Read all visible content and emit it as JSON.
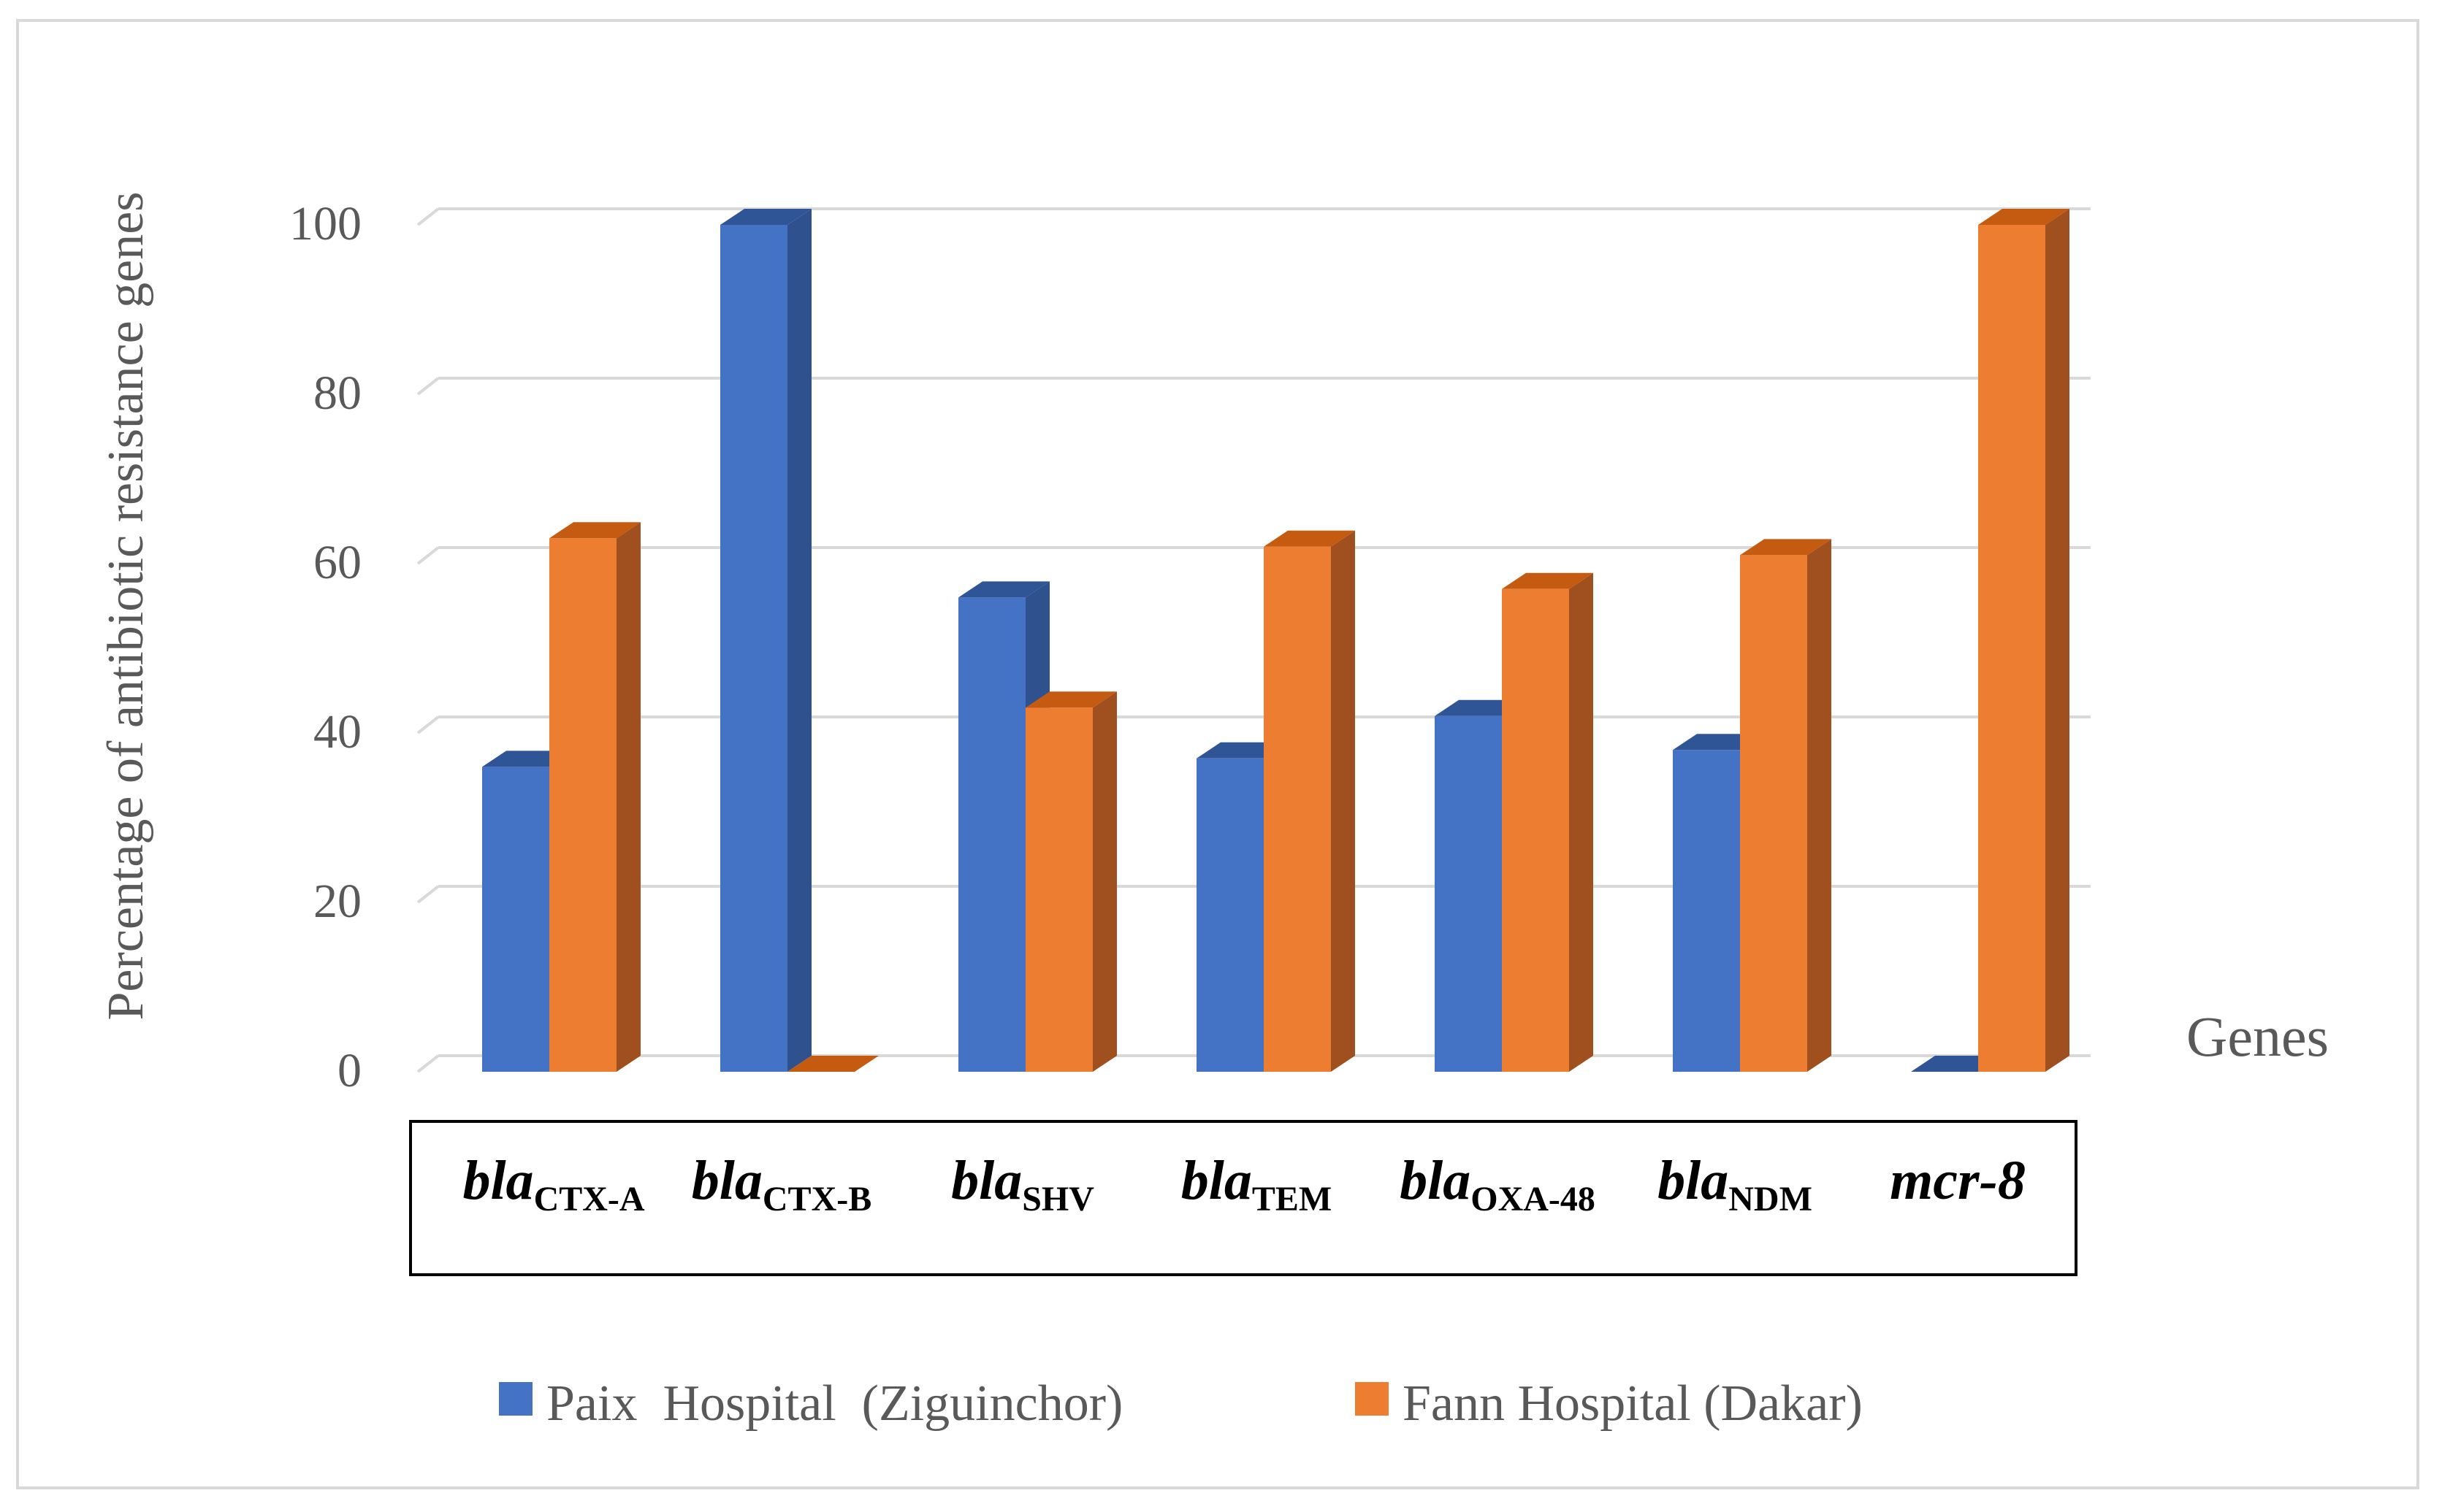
{
  "chart_data": {
    "type": "bar",
    "style": "3d-clustered",
    "ylabel": "Percentage of antibiotic resistance genes",
    "xlabel": "Genes",
    "ylim": [
      0,
      100
    ],
    "yticks": [
      "0",
      "20",
      "40",
      "60",
      "80",
      "100"
    ],
    "grid": true,
    "categories": [
      {
        "main": "bla",
        "sub": "CTX-A"
      },
      {
        "main": "bla",
        "sub": "CTX-B"
      },
      {
        "main": "bla",
        "sub": "SHV"
      },
      {
        "main": "bla",
        "sub": "TEM"
      },
      {
        "main": "bla",
        "sub": "OXA-48"
      },
      {
        "main": "bla",
        "sub": "NDM"
      },
      {
        "main": "mcr-8",
        "sub": ""
      }
    ],
    "series": [
      {
        "name": "Paix  Hospital  (Ziguinchor)",
        "color": "#4472c4",
        "side": "#2f528f",
        "top": "#2f5597",
        "values": [
          36,
          100,
          56,
          37,
          42,
          38,
          0
        ]
      },
      {
        "name": "Fann Hospital (Dakar)",
        "color": "#ed7d31",
        "side": "#a0501e",
        "top": "#c55a11",
        "values": [
          63,
          0,
          43,
          62,
          57,
          61,
          100
        ]
      }
    ],
    "legend_position": "bottom"
  }
}
